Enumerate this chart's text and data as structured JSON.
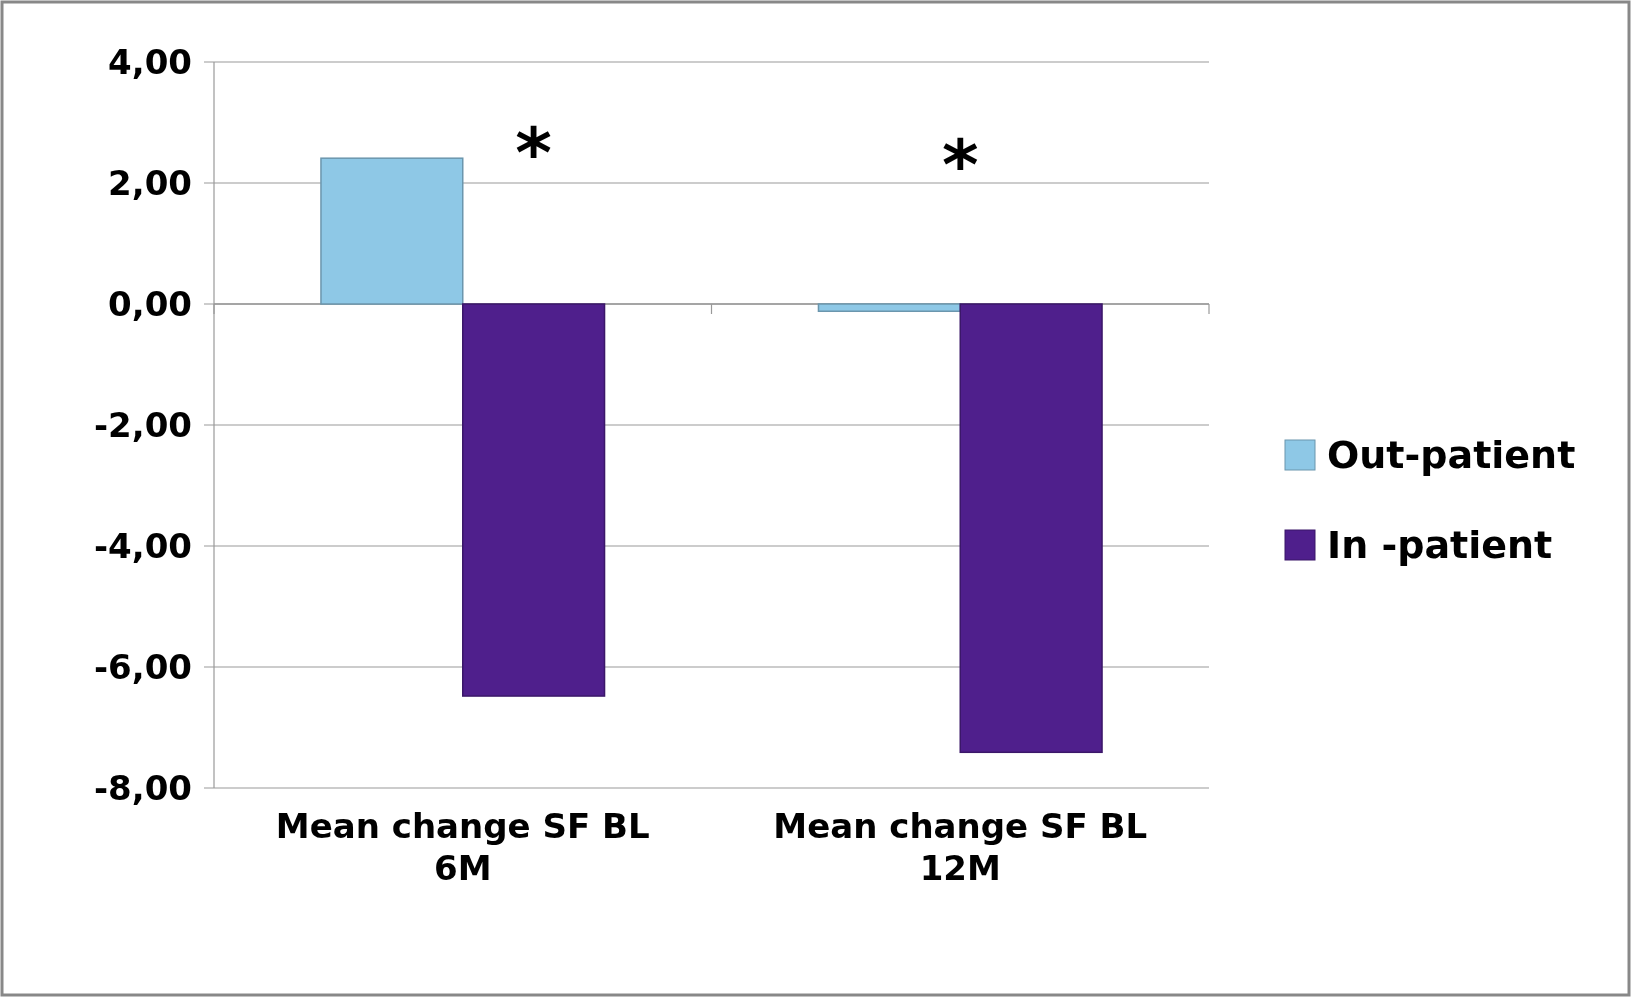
{
  "chart_data": {
    "type": "bar",
    "categories": [
      "Mean change SF BL 6M",
      "Mean change SF  BL 12M"
    ],
    "series": [
      {
        "name": "Out-patient",
        "color": "#8ec8e6",
        "values": [
          2.41,
          -0.12
        ]
      },
      {
        "name": "In -patient",
        "color": "#4f1f8c",
        "values": [
          -6.48,
          -7.41
        ]
      }
    ],
    "ylim": [
      -8,
      4
    ],
    "yticks": [
      {
        "value": -8,
        "label": "-8,00"
      },
      {
        "value": -6,
        "label": "-6,00"
      },
      {
        "value": -4,
        "label": "-4,00"
      },
      {
        "value": -2,
        "label": "-2,00"
      },
      {
        "value": 0,
        "label": "0,00"
      },
      {
        "value": 2,
        "label": "2,00"
      },
      {
        "value": 4,
        "label": "4,00"
      }
    ],
    "grid": "y",
    "legend": "right",
    "annotations": [
      "*",
      "*"
    ]
  }
}
